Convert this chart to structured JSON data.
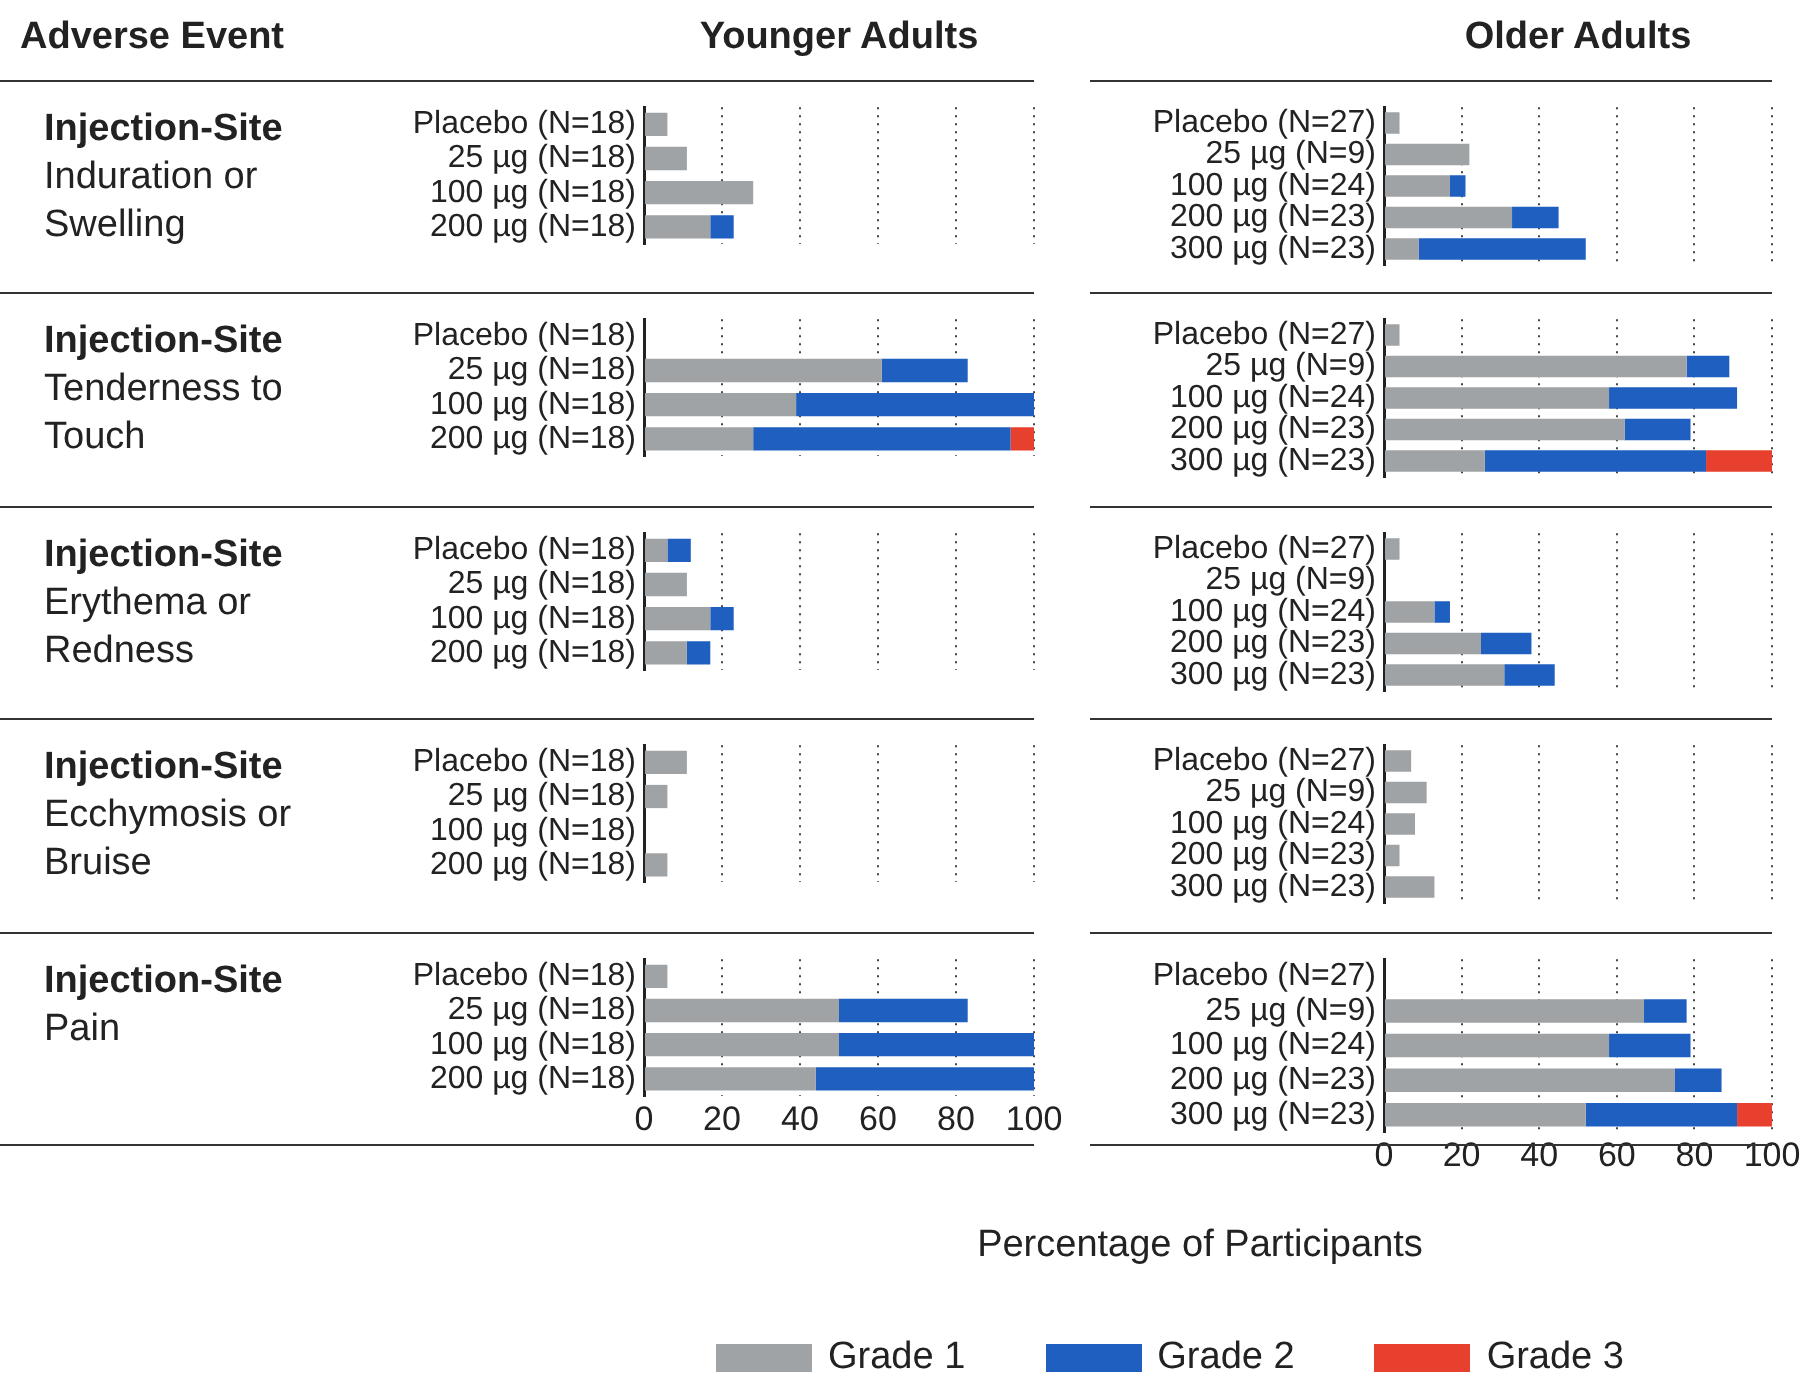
{
  "chart_data": [
    {
      "type": "bar",
      "orientation": "horizontal",
      "stacked": true,
      "title": "Younger Adults",
      "ylabel": "Injection-Site Induration or Swelling",
      "annotations": [
        "Adverse Event"
      ],
      "categories": [
        "Placebo (N=18)",
        "25 µg (N=18)",
        "100 µg (N=18)",
        "200 µg (N=18)"
      ],
      "series": [
        {
          "color": "#a0a3a6",
          "values": [
            6,
            11,
            28,
            17
          ]
        },
        {
          "color": "#1f5fbf",
          "values": [
            0,
            0,
            0,
            6
          ]
        },
        {
          "color": "#e8402f",
          "values": [
            0,
            0,
            0,
            0
          ]
        }
      ],
      "xlim": [
        0,
        100
      ],
      "xticks": [
        0,
        20,
        40,
        60,
        80,
        100
      ],
      "grid": "x",
      "tick_labels": "y"
    },
    {
      "type": "bar",
      "orientation": "horizontal",
      "stacked": true,
      "title": "Older Adults",
      "categories": [
        "Placebo (N=27)",
        "25 µg (N=9)",
        "100 µg (N=24)",
        "200 µg (N=23)",
        "300 µg (N=23)"
      ],
      "series": [
        {
          "color": "#a0a3a6",
          "values": [
            4,
            22,
            17,
            33,
            9
          ]
        },
        {
          "color": "#1f5fbf",
          "values": [
            0,
            0,
            4,
            12,
            43
          ]
        },
        {
          "color": "#e8402f",
          "values": [
            0,
            0,
            0,
            0,
            0
          ]
        }
      ],
      "xlim": [
        0,
        100
      ],
      "xticks": [
        0,
        20,
        40,
        60,
        80,
        100
      ],
      "grid": "x",
      "tick_labels": "y"
    },
    {
      "type": "bar",
      "orientation": "horizontal",
      "stacked": true,
      "ylabel": "Injection-Site Tenderness to Touch",
      "categories": [
        "Placebo (N=18)",
        "25 µg (N=18)",
        "100 µg (N=18)",
        "200 µg (N=18)"
      ],
      "series": [
        {
          "color": "#a0a3a6",
          "values": [
            0,
            61,
            39,
            28
          ]
        },
        {
          "color": "#1f5fbf",
          "values": [
            0,
            22,
            61,
            66
          ]
        },
        {
          "color": "#e8402f",
          "values": [
            0,
            0,
            0,
            6
          ]
        }
      ],
      "xlim": [
        0,
        100
      ],
      "xticks": [
        0,
        20,
        40,
        60,
        80,
        100
      ],
      "grid": "x",
      "tick_labels": "y"
    },
    {
      "type": "bar",
      "orientation": "horizontal",
      "stacked": true,
      "categories": [
        "Placebo (N=27)",
        "25 µg (N=9)",
        "100 µg (N=24)",
        "200 µg (N=23)",
        "300 µg (N=23)"
      ],
      "series": [
        {
          "color": "#a0a3a6",
          "values": [
            4,
            78,
            58,
            62,
            26
          ]
        },
        {
          "color": "#1f5fbf",
          "values": [
            0,
            11,
            33,
            17,
            57
          ]
        },
        {
          "color": "#e8402f",
          "values": [
            0,
            0,
            0,
            0,
            17
          ]
        }
      ],
      "xlim": [
        0,
        100
      ],
      "xticks": [
        0,
        20,
        40,
        60,
        80,
        100
      ],
      "grid": "x",
      "tick_labels": "y"
    },
    {
      "type": "bar",
      "orientation": "horizontal",
      "stacked": true,
      "ylabel": "Injection-Site Erythema or Redness",
      "categories": [
        "Placebo (N=18)",
        "25 µg (N=18)",
        "100 µg (N=18)",
        "200 µg (N=18)"
      ],
      "series": [
        {
          "color": "#a0a3a6",
          "values": [
            6,
            11,
            17,
            11
          ]
        },
        {
          "color": "#1f5fbf",
          "values": [
            6,
            0,
            6,
            6
          ]
        },
        {
          "color": "#e8402f",
          "values": [
            0,
            0,
            0,
            0
          ]
        }
      ],
      "xlim": [
        0,
        100
      ],
      "xticks": [
        0,
        20,
        40,
        60,
        80,
        100
      ],
      "grid": "x",
      "tick_labels": "y"
    },
    {
      "type": "bar",
      "orientation": "horizontal",
      "stacked": true,
      "categories": [
        "Placebo (N=27)",
        "25 µg (N=9)",
        "100 µg (N=24)",
        "200 µg (N=23)",
        "300 µg (N=23)"
      ],
      "series": [
        {
          "color": "#a0a3a6",
          "values": [
            4,
            0,
            13,
            25,
            31
          ]
        },
        {
          "color": "#1f5fbf",
          "values": [
            0,
            0,
            4,
            13,
            13
          ]
        },
        {
          "color": "#e8402f",
          "values": [
            0,
            0,
            0,
            0,
            0
          ]
        }
      ],
      "xlim": [
        0,
        100
      ],
      "xticks": [
        0,
        20,
        40,
        60,
        80,
        100
      ],
      "grid": "x",
      "tick_labels": "y"
    },
    {
      "type": "bar",
      "orientation": "horizontal",
      "stacked": true,
      "ylabel": "Injection-Site Ecchymosis or Bruise",
      "categories": [
        "Placebo (N=18)",
        "25 µg (N=18)",
        "100 µg (N=18)",
        "200 µg (N=18)"
      ],
      "series": [
        {
          "color": "#a0a3a6",
          "values": [
            11,
            6,
            0,
            6
          ]
        },
        {
          "color": "#1f5fbf",
          "values": [
            0,
            0,
            0,
            0
          ]
        },
        {
          "color": "#e8402f",
          "values": [
            0,
            0,
            0,
            0
          ]
        }
      ],
      "xlim": [
        0,
        100
      ],
      "xticks": [
        0,
        20,
        40,
        60,
        80,
        100
      ],
      "grid": "x",
      "tick_labels": "y"
    },
    {
      "type": "bar",
      "orientation": "horizontal",
      "stacked": true,
      "categories": [
        "Placebo (N=27)",
        "25 µg (N=9)",
        "100 µg (N=24)",
        "200 µg (N=23)",
        "300 µg (N=23)"
      ],
      "series": [
        {
          "color": "#a0a3a6",
          "values": [
            7,
            11,
            8,
            4,
            13
          ]
        },
        {
          "color": "#1f5fbf",
          "values": [
            0,
            0,
            0,
            0,
            0
          ]
        },
        {
          "color": "#e8402f",
          "values": [
            0,
            0,
            0,
            0,
            0
          ]
        }
      ],
      "xlim": [
        0,
        100
      ],
      "xticks": [
        0,
        20,
        40,
        60,
        80,
        100
      ],
      "grid": "x",
      "tick_labels": "y"
    },
    {
      "type": "bar",
      "orientation": "horizontal",
      "stacked": true,
      "ylabel": "Injection-Site Pain",
      "categories": [
        "Placebo (N=18)",
        "25 µg (N=18)",
        "100 µg (N=18)",
        "200 µg (N=18)"
      ],
      "series": [
        {
          "color": "#a0a3a6",
          "values": [
            6,
            50,
            50,
            44
          ]
        },
        {
          "color": "#1f5fbf",
          "values": [
            0,
            33,
            50,
            56
          ]
        },
        {
          "color": "#e8402f",
          "values": [
            0,
            0,
            0,
            0
          ]
        }
      ],
      "xlim": [
        0,
        100
      ],
      "xticks": [
        0,
        20,
        40,
        60,
        80,
        100
      ],
      "grid": "x"
    },
    {
      "type": "bar",
      "orientation": "horizontal",
      "stacked": true,
      "xlabel": "Percentage of Participants",
      "legend": "bottom",
      "categories": [
        "Placebo (N=27)",
        "25 µg (N=9)",
        "100 µg (N=24)",
        "200 µg (N=23)",
        "300 µg (N=23)"
      ],
      "series": [
        {
          "name": "Grade 1",
          "color": "#a0a3a6",
          "values": [
            0,
            67,
            58,
            75,
            52
          ]
        },
        {
          "name": "Grade 2",
          "color": "#1f5fbf",
          "values": [
            0,
            11,
            21,
            12,
            39
          ]
        },
        {
          "name": "Grade 3",
          "color": "#e8402f",
          "values": [
            0,
            0,
            0,
            0,
            9
          ]
        }
      ],
      "xlim": [
        0,
        100
      ],
      "xticks": [
        0,
        20,
        40,
        60,
        80,
        100
      ],
      "grid": "x"
    }
  ]
}
